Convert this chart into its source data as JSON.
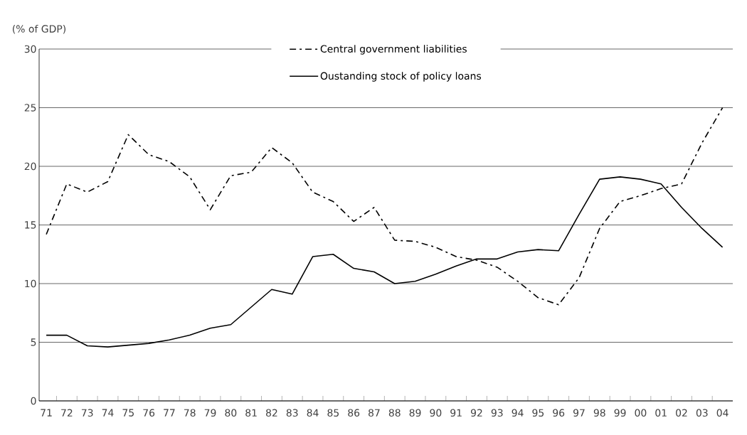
{
  "chart_data": {
    "type": "line",
    "ylabel": "(% of GDP)",
    "categories": [
      "71",
      "72",
      "73",
      "74",
      "75",
      "76",
      "77",
      "78",
      "79",
      "80",
      "81",
      "82",
      "83",
      "84",
      "85",
      "86",
      "87",
      "88",
      "89",
      "90",
      "91",
      "92",
      "93",
      "94",
      "95",
      "96",
      "97",
      "98",
      "99",
      "00",
      "01",
      "02",
      "03",
      "04"
    ],
    "series": [
      {
        "name": "Central government liabilities",
        "color": "#000000",
        "line_style": "dashed",
        "values": [
          14.2,
          18.5,
          17.8,
          18.7,
          22.7,
          21.0,
          20.4,
          19.1,
          16.3,
          19.2,
          19.5,
          21.6,
          20.3,
          17.8,
          17.0,
          15.3,
          16.5,
          13.7,
          13.6,
          13.1,
          12.3,
          12.0,
          11.4,
          10.2,
          8.8,
          8.2,
          10.5,
          14.7,
          17.0,
          17.5,
          18.1,
          18.5,
          22.0,
          25.0
        ]
      },
      {
        "name": "Oustanding stock of policy loans",
        "color": "#000000",
        "line_style": "solid",
        "values": [
          5.6,
          5.6,
          4.7,
          4.6,
          4.75,
          4.9,
          5.2,
          5.6,
          6.2,
          6.5,
          8.0,
          9.5,
          9.1,
          12.3,
          12.5,
          11.3,
          11.0,
          10.0,
          10.2,
          10.8,
          11.5,
          12.1,
          12.1,
          12.7,
          12.9,
          12.8,
          15.9,
          18.9,
          19.1,
          18.9,
          18.5,
          16.5,
          14.7,
          13.1
        ]
      }
    ],
    "ylim": [
      0,
      30
    ],
    "yticks": [
      0,
      5,
      10,
      15,
      20,
      25,
      30
    ],
    "grid": "y",
    "legend": "top",
    "marker": "none"
  }
}
